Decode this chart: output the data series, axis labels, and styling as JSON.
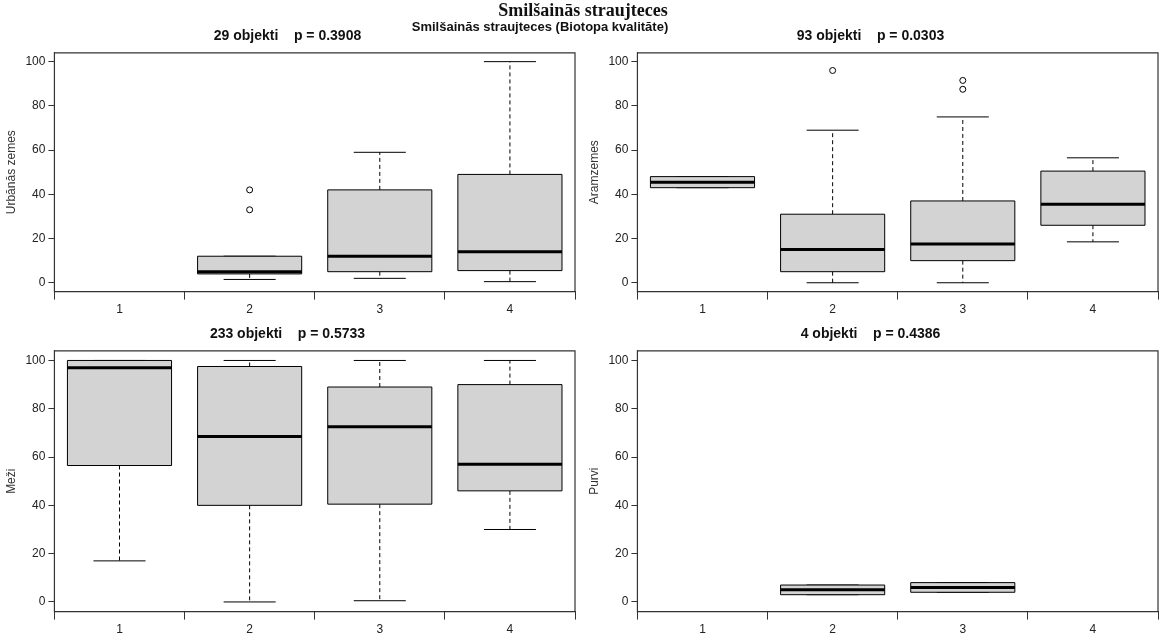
{
  "chart_data": [
    {
      "type": "box",
      "title": "29 objekti    p = 0.3908",
      "ylabel": "Urbānās zemes",
      "annotations": [
        "Smilšainās straujteces",
        "Smilšainās straujteces (Biotopa kvalitāte)"
      ],
      "categories": [
        "1",
        "2",
        "3",
        "4"
      ],
      "color": "#d3d3d3",
      "ylim": [
        -4,
        104
      ],
      "yticks": [
        0,
        20,
        40,
        60,
        80,
        100
      ],
      "boxes": [
        null,
        {
          "low": 1.5,
          "q1": 4,
          "median": 5,
          "q3": 12,
          "high": 12,
          "outliers": [
            42,
            33
          ]
        },
        {
          "low": 2,
          "q1": 5,
          "median": 12,
          "q3": 42,
          "high": 59
        },
        {
          "low": 0.5,
          "q1": 5.5,
          "median": 14,
          "q3": 49,
          "high": 100
        }
      ]
    },
    {
      "type": "box",
      "title": "93 objekti    p = 0.0303",
      "ylabel": "Aramzemes",
      "categories": [
        "1",
        "2",
        "3",
        "4"
      ],
      "color": "#d3d3d3",
      "ylim": [
        -4,
        104
      ],
      "yticks": [
        0,
        20,
        40,
        60,
        80,
        100
      ],
      "boxes": [
        {
          "low": 43,
          "q1": 43,
          "median": 45.5,
          "q3": 48,
          "high": 48
        },
        {
          "low": 0,
          "q1": 5,
          "median": 15,
          "q3": 31,
          "high": 69,
          "outliers": [
            96
          ]
        },
        {
          "low": 0,
          "q1": 10,
          "median": 17.5,
          "q3": 37,
          "high": 75,
          "outliers": [
            91.5,
            87.5
          ]
        },
        {
          "low": 18.5,
          "q1": 26,
          "median": 35.5,
          "q3": 50.5,
          "high": 56.5
        }
      ]
    },
    {
      "type": "box",
      "title": "233 objekti    p = 0.5733",
      "ylabel": "Meži",
      "categories": [
        "1",
        "2",
        "3",
        "4"
      ],
      "color": "#d3d3d3",
      "ylim": [
        -4,
        104
      ],
      "yticks": [
        0,
        20,
        40,
        60,
        80,
        100
      ],
      "boxes": [
        {
          "low": 17,
          "q1": 56.5,
          "median": 97,
          "q3": 100,
          "high": 100
        },
        {
          "low": 0,
          "q1": 40,
          "median": 68.5,
          "q3": 97.5,
          "high": 100
        },
        {
          "low": 0.5,
          "q1": 40.5,
          "median": 72.5,
          "q3": 89,
          "high": 100
        },
        {
          "low": 30,
          "q1": 46,
          "median": 57,
          "q3": 90,
          "high": 100
        }
      ]
    },
    {
      "type": "box",
      "title": "4 objekti    p = 0.4386",
      "ylabel": "Purvi",
      "categories": [
        "1",
        "2",
        "3",
        "4"
      ],
      "color": "#d3d3d3",
      "ylim": [
        -4,
        104
      ],
      "yticks": [
        0,
        20,
        40,
        60,
        80,
        100
      ],
      "boxes": [
        null,
        {
          "low": 3,
          "q1": 3,
          "median": 5,
          "q3": 7,
          "high": 7
        },
        {
          "low": 4,
          "q1": 4,
          "median": 6,
          "q3": 8,
          "high": 8
        },
        null
      ]
    }
  ]
}
